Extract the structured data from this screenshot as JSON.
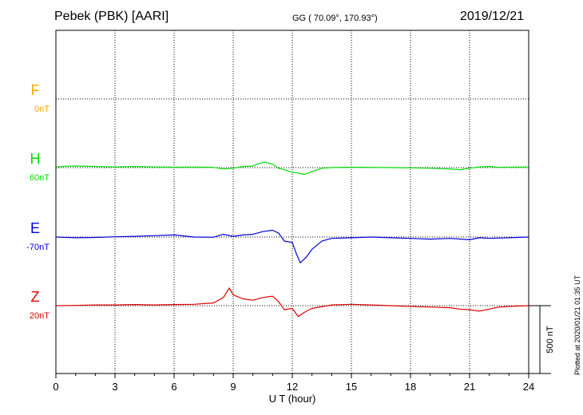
{
  "header": {
    "station": "Pebek (PBK)  [AARI]",
    "coords": "GG ( 70.09°, 170.93°)",
    "date": "2019/12/21"
  },
  "footer": {
    "plotted": "Plotted at 2020/01/21 01:35 UT"
  },
  "colors": {
    "F": "#ffa500",
    "H": "#00dd00",
    "E": "#0000dd",
    "Z": "#dd0000"
  },
  "chart_data": {
    "type": "line",
    "xlabel": "U T (hour)",
    "xlim": [
      0,
      24
    ],
    "xticks": [
      "0",
      "3",
      "6",
      "9",
      "12",
      "15",
      "18",
      "21",
      "24"
    ],
    "scale_label": "500 nT",
    "scale_nT": 500,
    "series": [
      {
        "name": "F",
        "baseline": "0nT",
        "points": []
      },
      {
        "name": "H",
        "baseline": "60nT",
        "points": [
          [
            0,
            5
          ],
          [
            0.5,
            10
          ],
          [
            1,
            12
          ],
          [
            2,
            8
          ],
          [
            3,
            5
          ],
          [
            4,
            8
          ],
          [
            5,
            5
          ],
          [
            6,
            3
          ],
          [
            7,
            4
          ],
          [
            8,
            2
          ],
          [
            8.5,
            -10
          ],
          [
            9,
            -5
          ],
          [
            9.5,
            8
          ],
          [
            10,
            12
          ],
          [
            10.3,
            30
          ],
          [
            10.6,
            40
          ],
          [
            11,
            25
          ],
          [
            11.3,
            -5
          ],
          [
            11.6,
            -15
          ],
          [
            12,
            -35
          ],
          [
            12.3,
            -40
          ],
          [
            12.6,
            -50
          ],
          [
            13,
            -30
          ],
          [
            13.5,
            -5
          ],
          [
            14,
            0
          ],
          [
            15,
            3
          ],
          [
            16,
            2
          ],
          [
            17,
            0
          ],
          [
            18,
            -2
          ],
          [
            19,
            -5
          ],
          [
            20,
            -10
          ],
          [
            20.5,
            -15
          ],
          [
            21,
            -5
          ],
          [
            21.5,
            5
          ],
          [
            22,
            8
          ],
          [
            22.5,
            2
          ],
          [
            23,
            3
          ],
          [
            24,
            5
          ]
        ]
      },
      {
        "name": "E",
        "baseline": "-70nT",
        "points": [
          [
            0,
            0
          ],
          [
            1,
            -5
          ],
          [
            2,
            -3
          ],
          [
            3,
            2
          ],
          [
            4,
            5
          ],
          [
            5,
            10
          ],
          [
            6,
            15
          ],
          [
            6.5,
            8
          ],
          [
            7,
            0
          ],
          [
            8,
            -2
          ],
          [
            8.5,
            20
          ],
          [
            9,
            5
          ],
          [
            9.5,
            15
          ],
          [
            10,
            20
          ],
          [
            10.5,
            40
          ],
          [
            11,
            50
          ],
          [
            11.3,
            30
          ],
          [
            11.6,
            -30
          ],
          [
            12,
            -40
          ],
          [
            12.2,
            -120
          ],
          [
            12.4,
            -190
          ],
          [
            12.7,
            -150
          ],
          [
            13,
            -90
          ],
          [
            13.5,
            -30
          ],
          [
            14,
            -10
          ],
          [
            15,
            -5
          ],
          [
            16,
            0
          ],
          [
            17,
            -5
          ],
          [
            18,
            -10
          ],
          [
            19,
            -15
          ],
          [
            20,
            -10
          ],
          [
            21,
            -20
          ],
          [
            21.5,
            -5
          ],
          [
            22,
            -10
          ],
          [
            23,
            -5
          ],
          [
            24,
            0
          ]
        ]
      },
      {
        "name": "Z",
        "baseline": "20nT",
        "points": [
          [
            0,
            0
          ],
          [
            1,
            2
          ],
          [
            2,
            5
          ],
          [
            3,
            5
          ],
          [
            4,
            8
          ],
          [
            5,
            5
          ],
          [
            6,
            8
          ],
          [
            7,
            10
          ],
          [
            8,
            20
          ],
          [
            8.5,
            60
          ],
          [
            8.8,
            130
          ],
          [
            9,
            80
          ],
          [
            9.5,
            50
          ],
          [
            10,
            40
          ],
          [
            10.5,
            60
          ],
          [
            11,
            70
          ],
          [
            11.3,
            30
          ],
          [
            11.6,
            -30
          ],
          [
            12,
            -20
          ],
          [
            12.3,
            -80
          ],
          [
            12.6,
            -50
          ],
          [
            13,
            -20
          ],
          [
            14,
            5
          ],
          [
            15,
            10
          ],
          [
            16,
            5
          ],
          [
            17,
            0
          ],
          [
            18,
            -5
          ],
          [
            19,
            -10
          ],
          [
            20,
            -15
          ],
          [
            20.5,
            -25
          ],
          [
            21,
            -30
          ],
          [
            21.5,
            -40
          ],
          [
            22,
            -25
          ],
          [
            22.5,
            -10
          ],
          [
            23,
            -5
          ],
          [
            24,
            0
          ]
        ]
      }
    ]
  }
}
